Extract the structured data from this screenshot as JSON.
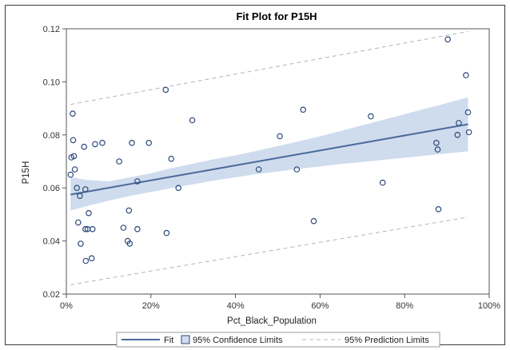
{
  "chart_data": {
    "type": "scatter",
    "title": "Fit Plot for P15H",
    "xlabel": "Pct_Black_Population",
    "ylabel": "P15H",
    "xlim": [
      0,
      1
    ],
    "ylim": [
      0.02,
      0.12
    ],
    "xticks": [
      0,
      0.2,
      0.4,
      0.6,
      0.8,
      1.0
    ],
    "xtick_labels": [
      "0%",
      "20%",
      "40%",
      "60%",
      "80%",
      "100%"
    ],
    "yticks": [
      0.02,
      0.04,
      0.06,
      0.08,
      0.1,
      0.12
    ],
    "ytick_labels": [
      "0.02",
      "0.04",
      "0.06",
      "0.08",
      "0.10",
      "0.12"
    ],
    "grid": false,
    "legend_position": "bottom",
    "legend": {
      "fit": "Fit",
      "confidence": "95% Confidence Limits",
      "prediction": "95% Prediction Limits"
    },
    "colors": {
      "points": "#2c4a7a",
      "fit_line": "#4a6a9a",
      "confidence_band": "#cfdcee",
      "prediction_line": "#b4b4b4",
      "axis": "#555555"
    },
    "fit": {
      "x": [
        0.01,
        0.95
      ],
      "y": [
        0.0575,
        0.084
      ]
    },
    "confidence_upper": {
      "x": [
        0.01,
        0.05,
        0.1,
        0.15,
        0.2,
        0.25,
        0.3,
        0.35,
        0.4,
        0.45,
        0.5,
        0.55,
        0.6,
        0.65,
        0.7,
        0.75,
        0.8,
        0.85,
        0.9,
        0.95
      ],
      "y": [
        0.064,
        0.063,
        0.0625,
        0.064,
        0.0655,
        0.0675,
        0.0692,
        0.0708,
        0.0723,
        0.074,
        0.0758,
        0.0776,
        0.0795,
        0.0815,
        0.0836,
        0.0857,
        0.0878,
        0.0899,
        0.092,
        0.0942
      ]
    },
    "confidence_lower": {
      "x": [
        0.01,
        0.05,
        0.1,
        0.15,
        0.2,
        0.25,
        0.3,
        0.35,
        0.4,
        0.45,
        0.5,
        0.55,
        0.6,
        0.65,
        0.7,
        0.75,
        0.8,
        0.85,
        0.9,
        0.95
      ],
      "y": [
        0.0515,
        0.0532,
        0.0552,
        0.057,
        0.0585,
        0.06,
        0.0614,
        0.0628,
        0.064,
        0.0652,
        0.0662,
        0.0672,
        0.0681,
        0.069,
        0.0698,
        0.0706,
        0.0714,
        0.0722,
        0.073,
        0.0738
      ]
    },
    "prediction_upper": {
      "x": [
        0.01,
        0.95
      ],
      "y": [
        0.0915,
        0.119
      ]
    },
    "prediction_lower": {
      "x": [
        0.01,
        0.95
      ],
      "y": [
        0.0235,
        0.049
      ]
    },
    "points": [
      {
        "x": 0.01,
        "y": 0.065
      },
      {
        "x": 0.012,
        "y": 0.0715
      },
      {
        "x": 0.015,
        "y": 0.088
      },
      {
        "x": 0.016,
        "y": 0.078
      },
      {
        "x": 0.018,
        "y": 0.072
      },
      {
        "x": 0.02,
        "y": 0.067
      },
      {
        "x": 0.025,
        "y": 0.06
      },
      {
        "x": 0.028,
        "y": 0.047
      },
      {
        "x": 0.032,
        "y": 0.057
      },
      {
        "x": 0.034,
        "y": 0.039
      },
      {
        "x": 0.042,
        "y": 0.0755
      },
      {
        "x": 0.045,
        "y": 0.0445
      },
      {
        "x": 0.045,
        "y": 0.0595
      },
      {
        "x": 0.046,
        "y": 0.0325
      },
      {
        "x": 0.05,
        "y": 0.0445
      },
      {
        "x": 0.053,
        "y": 0.0505
      },
      {
        "x": 0.06,
        "y": 0.0335
      },
      {
        "x": 0.062,
        "y": 0.0445
      },
      {
        "x": 0.068,
        "y": 0.0765
      },
      {
        "x": 0.085,
        "y": 0.077
      },
      {
        "x": 0.125,
        "y": 0.07
      },
      {
        "x": 0.135,
        "y": 0.045
      },
      {
        "x": 0.145,
        "y": 0.04
      },
      {
        "x": 0.148,
        "y": 0.0515
      },
      {
        "x": 0.15,
        "y": 0.039
      },
      {
        "x": 0.155,
        "y": 0.077
      },
      {
        "x": 0.168,
        "y": 0.0445
      },
      {
        "x": 0.168,
        "y": 0.0625
      },
      {
        "x": 0.195,
        "y": 0.077
      },
      {
        "x": 0.235,
        "y": 0.097
      },
      {
        "x": 0.237,
        "y": 0.043
      },
      {
        "x": 0.248,
        "y": 0.071
      },
      {
        "x": 0.265,
        "y": 0.06
      },
      {
        "x": 0.298,
        "y": 0.0855
      },
      {
        "x": 0.455,
        "y": 0.067
      },
      {
        "x": 0.505,
        "y": 0.0795
      },
      {
        "x": 0.545,
        "y": 0.067
      },
      {
        "x": 0.56,
        "y": 0.0895
      },
      {
        "x": 0.585,
        "y": 0.0475
      },
      {
        "x": 0.72,
        "y": 0.087
      },
      {
        "x": 0.748,
        "y": 0.062
      },
      {
        "x": 0.875,
        "y": 0.077
      },
      {
        "x": 0.878,
        "y": 0.0745
      },
      {
        "x": 0.88,
        "y": 0.052
      },
      {
        "x": 0.902,
        "y": 0.116
      },
      {
        "x": 0.925,
        "y": 0.08
      },
      {
        "x": 0.928,
        "y": 0.0845
      },
      {
        "x": 0.945,
        "y": 0.1025
      },
      {
        "x": 0.95,
        "y": 0.0885
      },
      {
        "x": 0.952,
        "y": 0.081
      }
    ]
  }
}
